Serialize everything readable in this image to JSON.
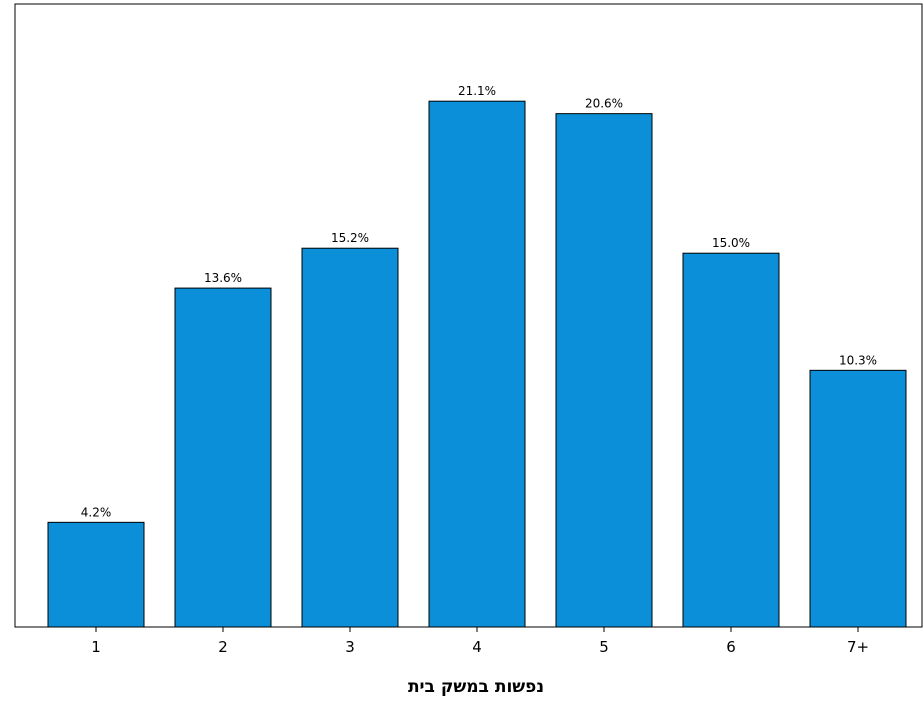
{
  "chart_data": {
    "type": "bar",
    "categories": [
      "1",
      "2",
      "3",
      "4",
      "5",
      "6",
      "7+"
    ],
    "values": [
      4.2,
      13.6,
      15.2,
      21.1,
      20.6,
      15.0,
      10.3
    ],
    "value_labels": [
      "4.2%",
      "13.6%",
      "15.2%",
      "21.1%",
      "20.6%",
      "15.0%",
      "10.3%"
    ],
    "title": "",
    "xlabel": "נפשות במשק בית",
    "ylabel": "",
    "ylim": [
      0,
      25
    ],
    "grid": false,
    "legend": "none",
    "bar_color": "#0a8fd8",
    "bar_stroke": "#000000"
  }
}
